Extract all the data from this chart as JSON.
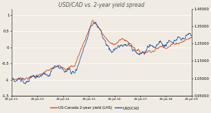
{
  "title": "USD/CAD vs. 2-year yield spread",
  "title_fontsize": 5.5,
  "left_ylim": [
    -1.5,
    1.2
  ],
  "right_ylim": [
    0.95,
    1.45
  ],
  "left_yticks": [
    -1.5,
    -1.0,
    -0.5,
    0.0,
    0.5,
    1.0
  ],
  "left_ytick_labels": [
    "-1.5",
    "-1",
    "-0.5",
    "0",
    "0.5",
    "1"
  ],
  "right_yticks": [
    0.95,
    1.05,
    1.15,
    1.25,
    1.35,
    1.45
  ],
  "xtick_labels": [
    "29-Jul-11",
    "29-Jul-13",
    "29-Jul-14",
    "29-Jul-15",
    "29-Jul-16",
    "29-Jul-17",
    "29-Jul-18",
    "29-Jul-19"
  ],
  "color_yield": "#d04010",
  "color_usdcad": "#2050a0",
  "legend_yield": "US-Canada 2-year yield (LHS)",
  "legend_usdcad": "USD/CAD",
  "bg_color": "#f0ece4",
  "grid_color": "#ffffff",
  "n_points": 500
}
